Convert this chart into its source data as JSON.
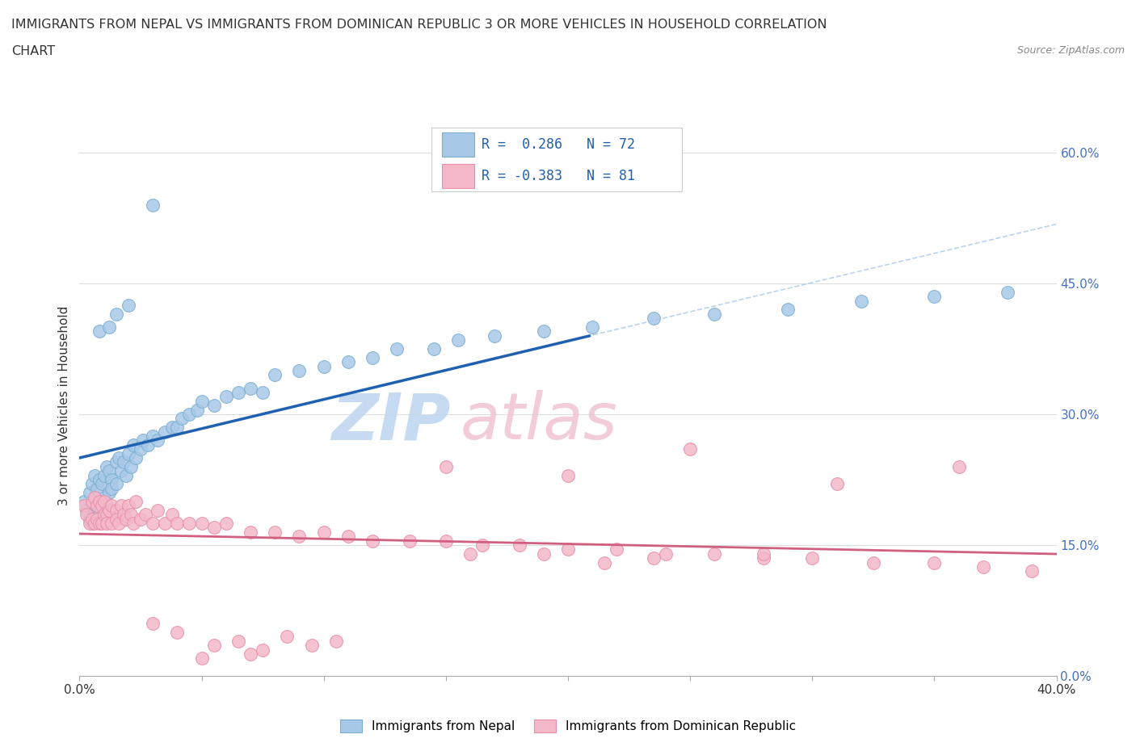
{
  "title_line1": "IMMIGRANTS FROM NEPAL VS IMMIGRANTS FROM DOMINICAN REPUBLIC 3 OR MORE VEHICLES IN HOUSEHOLD CORRELATION",
  "title_line2": "CHART",
  "source_text": "Source: ZipAtlas.com",
  "ylabel": "3 or more Vehicles in Household",
  "legend_label1": "Immigrants from Nepal",
  "legend_label2": "Immigrants from Dominican Republic",
  "R1": 0.286,
  "N1": 72,
  "R2": -0.383,
  "N2": 81,
  "color1_face": "#a8c8e8",
  "color1_edge": "#7aaed0",
  "color2_face": "#f4b8c8",
  "color2_edge": "#e890a8",
  "trendline1_color": "#2060b0",
  "trendline2_color": "#d06080",
  "trendline_ext_color": "#b8d4f0",
  "xlim": [
    0.0,
    0.4
  ],
  "ylim": [
    0.0,
    0.62
  ],
  "x_ticks": [
    0.0,
    0.05,
    0.1,
    0.15,
    0.2,
    0.25,
    0.3,
    0.35,
    0.4
  ],
  "y_ticks": [
    0.0,
    0.15,
    0.3,
    0.45,
    0.6
  ],
  "watermark_zip_color": "#c8dff0",
  "watermark_atlas_color": "#f0c8d0",
  "nepal_x": [
    0.002,
    0.003,
    0.004,
    0.004,
    0.005,
    0.005,
    0.005,
    0.006,
    0.006,
    0.007,
    0.007,
    0.008,
    0.008,
    0.009,
    0.009,
    0.01,
    0.01,
    0.011,
    0.011,
    0.012,
    0.012,
    0.013,
    0.013,
    0.015,
    0.015,
    0.016,
    0.017,
    0.018,
    0.019,
    0.02,
    0.021,
    0.022,
    0.023,
    0.025,
    0.026,
    0.028,
    0.03,
    0.032,
    0.035,
    0.038,
    0.04,
    0.042,
    0.045,
    0.048,
    0.05,
    0.055,
    0.06,
    0.065,
    0.07,
    0.075,
    0.08,
    0.09,
    0.1,
    0.11,
    0.12,
    0.13,
    0.145,
    0.155,
    0.17,
    0.19,
    0.21,
    0.235,
    0.26,
    0.29,
    0.32,
    0.35,
    0.38,
    0.008,
    0.012,
    0.015,
    0.02,
    0.03
  ],
  "nepal_y": [
    0.2,
    0.19,
    0.21,
    0.18,
    0.22,
    0.195,
    0.175,
    0.23,
    0.185,
    0.215,
    0.195,
    0.225,
    0.185,
    0.22,
    0.2,
    0.23,
    0.205,
    0.24,
    0.195,
    0.235,
    0.21,
    0.225,
    0.215,
    0.245,
    0.22,
    0.25,
    0.235,
    0.245,
    0.23,
    0.255,
    0.24,
    0.265,
    0.25,
    0.26,
    0.27,
    0.265,
    0.275,
    0.27,
    0.28,
    0.285,
    0.285,
    0.295,
    0.3,
    0.305,
    0.315,
    0.31,
    0.32,
    0.325,
    0.33,
    0.325,
    0.345,
    0.35,
    0.355,
    0.36,
    0.365,
    0.375,
    0.375,
    0.385,
    0.39,
    0.395,
    0.4,
    0.41,
    0.415,
    0.42,
    0.43,
    0.435,
    0.44,
    0.395,
    0.4,
    0.415,
    0.425,
    0.54
  ],
  "dr_x": [
    0.002,
    0.003,
    0.004,
    0.005,
    0.005,
    0.006,
    0.006,
    0.007,
    0.007,
    0.008,
    0.008,
    0.009,
    0.009,
    0.01,
    0.01,
    0.011,
    0.011,
    0.012,
    0.013,
    0.013,
    0.015,
    0.015,
    0.016,
    0.017,
    0.018,
    0.019,
    0.02,
    0.021,
    0.022,
    0.023,
    0.025,
    0.027,
    0.03,
    0.032,
    0.035,
    0.038,
    0.04,
    0.045,
    0.05,
    0.055,
    0.06,
    0.07,
    0.08,
    0.09,
    0.1,
    0.11,
    0.12,
    0.135,
    0.15,
    0.165,
    0.18,
    0.2,
    0.22,
    0.24,
    0.26,
    0.28,
    0.3,
    0.325,
    0.35,
    0.37,
    0.39,
    0.15,
    0.2,
    0.25,
    0.31,
    0.36,
    0.16,
    0.19,
    0.215,
    0.235,
    0.28,
    0.05,
    0.07,
    0.03,
    0.04,
    0.055,
    0.065,
    0.075,
    0.085,
    0.095,
    0.105
  ],
  "dr_y": [
    0.195,
    0.185,
    0.175,
    0.2,
    0.18,
    0.205,
    0.175,
    0.195,
    0.18,
    0.2,
    0.175,
    0.195,
    0.175,
    0.2,
    0.185,
    0.185,
    0.175,
    0.19,
    0.195,
    0.175,
    0.19,
    0.18,
    0.175,
    0.195,
    0.185,
    0.18,
    0.195,
    0.185,
    0.175,
    0.2,
    0.18,
    0.185,
    0.175,
    0.19,
    0.175,
    0.185,
    0.175,
    0.175,
    0.175,
    0.17,
    0.175,
    0.165,
    0.165,
    0.16,
    0.165,
    0.16,
    0.155,
    0.155,
    0.155,
    0.15,
    0.15,
    0.145,
    0.145,
    0.14,
    0.14,
    0.135,
    0.135,
    0.13,
    0.13,
    0.125,
    0.12,
    0.24,
    0.23,
    0.26,
    0.22,
    0.24,
    0.14,
    0.14,
    0.13,
    0.135,
    0.14,
    0.02,
    0.025,
    0.06,
    0.05,
    0.035,
    0.04,
    0.03,
    0.045,
    0.035,
    0.04
  ]
}
